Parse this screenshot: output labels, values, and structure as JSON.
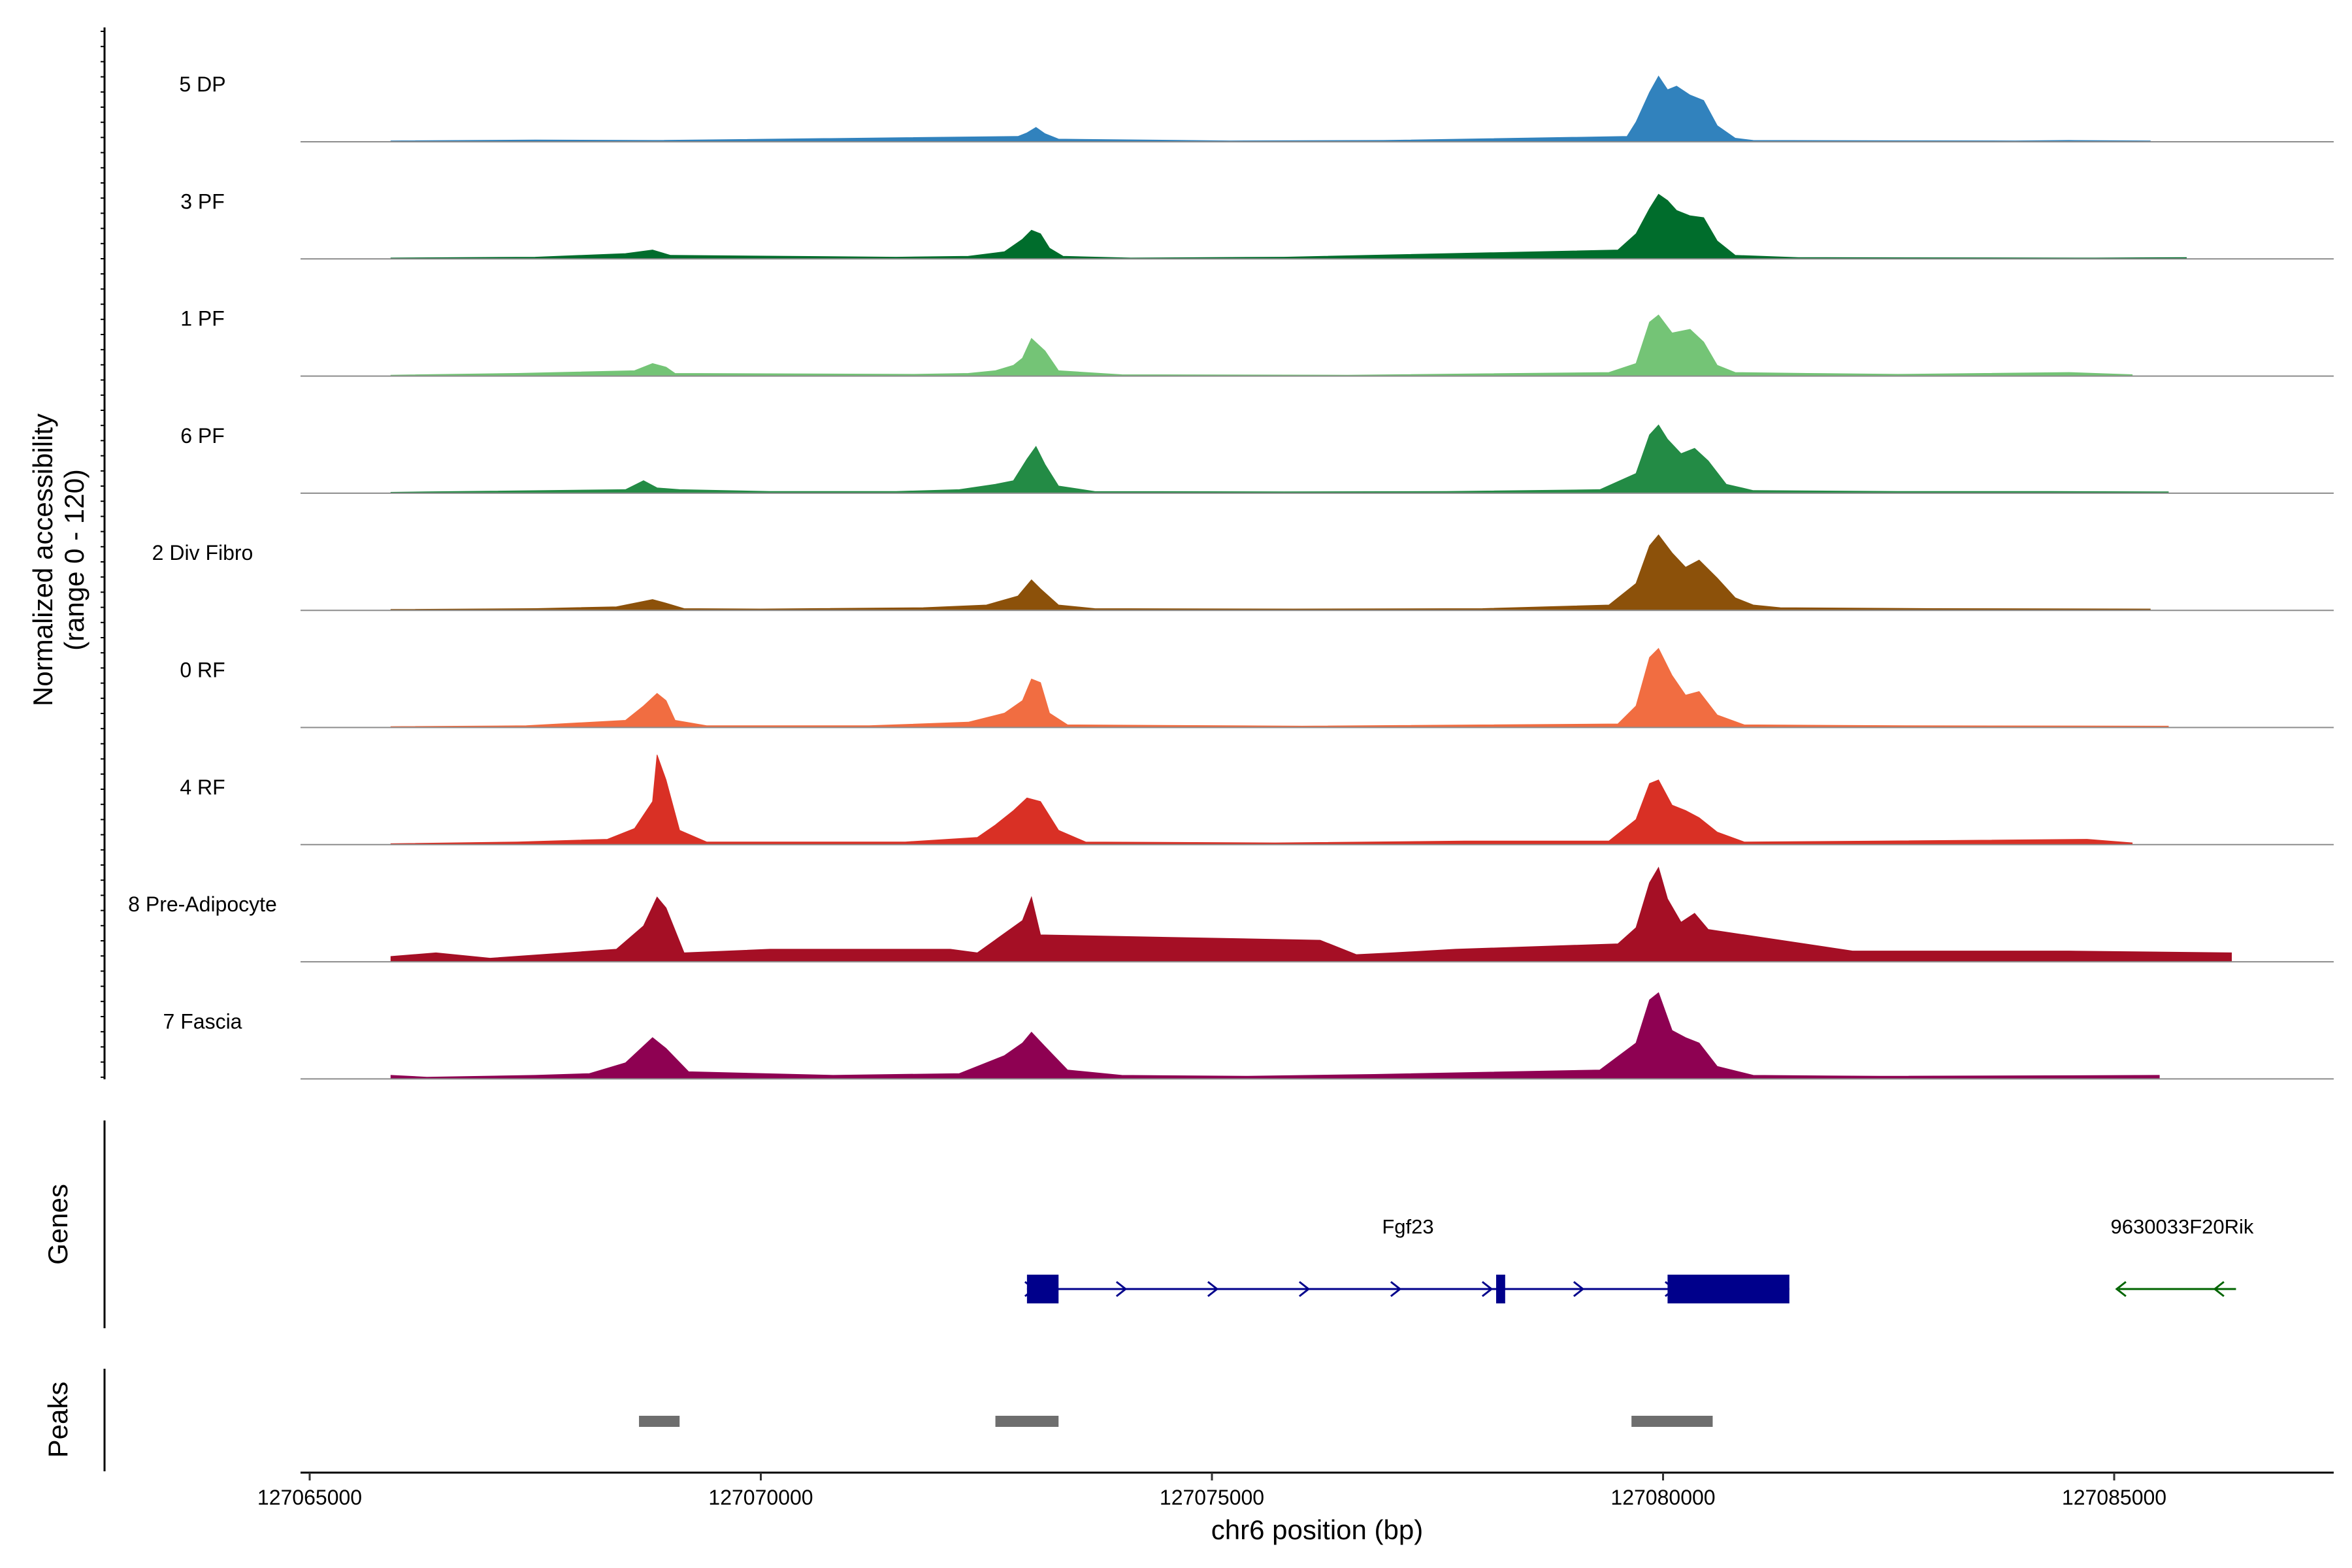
{
  "chart_data": {
    "type": "area",
    "title": "",
    "ylabel_line1": "Normalized accessibility",
    "ylabel_line2": "(range 0 - 120)",
    "xlabel": "chr6 position (bp)",
    "xlim": [
      127064900,
      127087550
    ],
    "ylim": [
      0,
      120
    ],
    "x_ticks": [
      127065000,
      127070000,
      127075000,
      127080000,
      127085000
    ],
    "x_tick_labels": [
      "127065000",
      "127070000",
      "127075000",
      "127080000",
      "127085000"
    ],
    "series": [
      {
        "name": "5 DP",
        "color": "#3182BD",
        "coverage": [
          [
            127065900,
            1
          ],
          [
            127067500,
            2
          ],
          [
            127068800,
            1.5
          ],
          [
            127072850,
            6
          ],
          [
            127072950,
            10
          ],
          [
            127073050,
            16
          ],
          [
            127073150,
            9
          ],
          [
            127073300,
            3
          ],
          [
            127075200,
            1
          ],
          [
            127076900,
            1.5
          ],
          [
            127079600,
            6
          ],
          [
            127079700,
            22
          ],
          [
            127079850,
            55
          ],
          [
            127079950,
            73
          ],
          [
            127080050,
            58
          ],
          [
            127080150,
            62
          ],
          [
            127080300,
            52
          ],
          [
            127080450,
            46
          ],
          [
            127080600,
            18
          ],
          [
            127080800,
            4
          ],
          [
            127081000,
            1.5
          ],
          [
            127083900,
            1
          ],
          [
            127084500,
            1.5
          ],
          [
            127085400,
            1
          ]
        ]
      },
      {
        "name": "3 PF",
        "color": "#006D2C",
        "coverage": [
          [
            127065900,
            1
          ],
          [
            127067500,
            2
          ],
          [
            127068500,
            6
          ],
          [
            127068800,
            10
          ],
          [
            127069000,
            4
          ],
          [
            127071500,
            2
          ],
          [
            127072300,
            3
          ],
          [
            127072700,
            8
          ],
          [
            127072900,
            22
          ],
          [
            127073000,
            32
          ],
          [
            127073100,
            28
          ],
          [
            127073200,
            12
          ],
          [
            127073350,
            3
          ],
          [
            127074100,
            1
          ],
          [
            127075800,
            2
          ],
          [
            127079500,
            10
          ],
          [
            127079700,
            28
          ],
          [
            127079850,
            56
          ],
          [
            127079950,
            72
          ],
          [
            127080050,
            65
          ],
          [
            127080150,
            54
          ],
          [
            127080300,
            48
          ],
          [
            127080450,
            46
          ],
          [
            127080600,
            20
          ],
          [
            127080800,
            4
          ],
          [
            127081500,
            1.5
          ],
          [
            127084800,
            1
          ],
          [
            127085800,
            1.5
          ]
        ]
      },
      {
        "name": "1 PF",
        "color": "#74C476",
        "coverage": [
          [
            127065900,
            1
          ],
          [
            127067300,
            3
          ],
          [
            127068600,
            6
          ],
          [
            127068800,
            14
          ],
          [
            127068950,
            10
          ],
          [
            127069050,
            3
          ],
          [
            127071700,
            2
          ],
          [
            127072300,
            3
          ],
          [
            127072600,
            6
          ],
          [
            127072800,
            12
          ],
          [
            127072900,
            20
          ],
          [
            127073000,
            42
          ],
          [
            127073150,
            28
          ],
          [
            127073300,
            6
          ],
          [
            127074000,
            1.5
          ],
          [
            127076500,
            1
          ],
          [
            127079400,
            4
          ],
          [
            127079700,
            14
          ],
          [
            127079850,
            60
          ],
          [
            127079950,
            68
          ],
          [
            127080100,
            48
          ],
          [
            127080300,
            52
          ],
          [
            127080450,
            38
          ],
          [
            127080600,
            12
          ],
          [
            127080800,
            4
          ],
          [
            127081600,
            3
          ],
          [
            127082600,
            2
          ],
          [
            127084500,
            4
          ],
          [
            127085200,
            1.5
          ]
        ]
      },
      {
        "name": "6 PF",
        "color": "#238B45",
        "coverage": [
          [
            127065900,
            1
          ],
          [
            127066300,
            1.5
          ],
          [
            127068500,
            4
          ],
          [
            127068700,
            14
          ],
          [
            127068850,
            6
          ],
          [
            127069100,
            4
          ],
          [
            127070100,
            2
          ],
          [
            127071500,
            2
          ],
          [
            127072200,
            4
          ],
          [
            127072600,
            10
          ],
          [
            127072800,
            14
          ],
          [
            127072950,
            38
          ],
          [
            127073050,
            52
          ],
          [
            127073150,
            32
          ],
          [
            127073300,
            8
          ],
          [
            127073700,
            2
          ],
          [
            127075800,
            1.5
          ],
          [
            127077600,
            2
          ],
          [
            127079300,
            4
          ],
          [
            127079700,
            22
          ],
          [
            127079850,
            65
          ],
          [
            127079950,
            76
          ],
          [
            127080050,
            60
          ],
          [
            127080200,
            44
          ],
          [
            127080350,
            50
          ],
          [
            127080500,
            36
          ],
          [
            127080700,
            10
          ],
          [
            127081000,
            3
          ],
          [
            127082600,
            2
          ],
          [
            127084300,
            2
          ],
          [
            127085600,
            1.5
          ]
        ]
      },
      {
        "name": "2 Div Fibro",
        "color": "#8C510A",
        "coverage": [
          [
            127065900,
            1
          ],
          [
            127067500,
            2
          ],
          [
            127068400,
            4
          ],
          [
            127068800,
            12
          ],
          [
            127068950,
            8
          ],
          [
            127069150,
            2
          ],
          [
            127070000,
            1.5
          ],
          [
            127071800,
            3
          ],
          [
            127072500,
            6
          ],
          [
            127072850,
            16
          ],
          [
            127073000,
            34
          ],
          [
            127073100,
            24
          ],
          [
            127073300,
            6
          ],
          [
            127073700,
            2
          ],
          [
            127075900,
            1.5
          ],
          [
            127078000,
            2
          ],
          [
            127079400,
            6
          ],
          [
            127079700,
            30
          ],
          [
            127079850,
            72
          ],
          [
            127079950,
            84
          ],
          [
            127080100,
            64
          ],
          [
            127080250,
            48
          ],
          [
            127080400,
            56
          ],
          [
            127080600,
            36
          ],
          [
            127080800,
            14
          ],
          [
            127081000,
            6
          ],
          [
            127081300,
            3
          ],
          [
            127083000,
            2
          ],
          [
            127085400,
            1.5
          ]
        ]
      },
      {
        "name": "0 RF",
        "color": "#F16D41",
        "coverage": [
          [
            127065900,
            1
          ],
          [
            127067400,
            2
          ],
          [
            127068500,
            8
          ],
          [
            127068700,
            24
          ],
          [
            127068850,
            38
          ],
          [
            127068950,
            30
          ],
          [
            127069050,
            8
          ],
          [
            127069400,
            2
          ],
          [
            127071200,
            2
          ],
          [
            127072300,
            6
          ],
          [
            127072700,
            16
          ],
          [
            127072900,
            30
          ],
          [
            127073000,
            54
          ],
          [
            127073100,
            50
          ],
          [
            127073200,
            16
          ],
          [
            127073400,
            3
          ],
          [
            127076000,
            1.5
          ],
          [
            127079500,
            4
          ],
          [
            127079700,
            24
          ],
          [
            127079850,
            78
          ],
          [
            127079950,
            88
          ],
          [
            127080100,
            58
          ],
          [
            127080250,
            36
          ],
          [
            127080400,
            40
          ],
          [
            127080600,
            14
          ],
          [
            127080900,
            3
          ],
          [
            127082700,
            2
          ],
          [
            127085600,
            1.5
          ]
        ]
      },
      {
        "name": "4 RF",
        "color": "#D93025",
        "coverage": [
          [
            127065900,
            1
          ],
          [
            127067300,
            3
          ],
          [
            127068300,
            6
          ],
          [
            127068600,
            18
          ],
          [
            127068800,
            48
          ],
          [
            127068850,
            100
          ],
          [
            127068950,
            72
          ],
          [
            127069100,
            16
          ],
          [
            127069400,
            3
          ],
          [
            127071600,
            3
          ],
          [
            127072400,
            8
          ],
          [
            127072600,
            22
          ],
          [
            127072800,
            38
          ],
          [
            127072950,
            52
          ],
          [
            127073100,
            48
          ],
          [
            127073300,
            16
          ],
          [
            127073600,
            3
          ],
          [
            127075700,
            2
          ],
          [
            127077800,
            4
          ],
          [
            127079400,
            4
          ],
          [
            127079700,
            28
          ],
          [
            127079850,
            68
          ],
          [
            127079950,
            72
          ],
          [
            127080100,
            44
          ],
          [
            127080250,
            38
          ],
          [
            127080400,
            30
          ],
          [
            127080600,
            14
          ],
          [
            127080900,
            3
          ],
          [
            127082400,
            4
          ],
          [
            127084700,
            6
          ],
          [
            127085200,
            2
          ]
        ]
      },
      {
        "name": "8 Pre-Adipocyte",
        "color": "#A50F25",
        "coverage": [
          [
            127065900,
            6
          ],
          [
            127066400,
            10
          ],
          [
            127067000,
            4
          ],
          [
            127068400,
            14
          ],
          [
            127068700,
            40
          ],
          [
            127068850,
            72
          ],
          [
            127068950,
            60
          ],
          [
            127069150,
            10
          ],
          [
            127070100,
            14
          ],
          [
            127072100,
            14
          ],
          [
            127072400,
            10
          ],
          [
            127072900,
            46
          ],
          [
            127073000,
            72
          ],
          [
            127073100,
            30
          ],
          [
            127076200,
            24
          ],
          [
            127076600,
            8
          ],
          [
            127077000,
            10
          ],
          [
            127077700,
            14
          ],
          [
            127079500,
            20
          ],
          [
            127079700,
            38
          ],
          [
            127079850,
            88
          ],
          [
            127079950,
            105
          ],
          [
            127080050,
            70
          ],
          [
            127080200,
            44
          ],
          [
            127080350,
            54
          ],
          [
            127080500,
            36
          ],
          [
            127082100,
            12
          ],
          [
            127084500,
            12
          ],
          [
            127086300,
            10
          ]
        ]
      },
      {
        "name": "7 Fascia",
        "color": "#8E0152",
        "coverage": [
          [
            127065900,
            4
          ],
          [
            127066300,
            2
          ],
          [
            127067500,
            4
          ],
          [
            127068100,
            6
          ],
          [
            127068500,
            18
          ],
          [
            127068800,
            46
          ],
          [
            127068950,
            34
          ],
          [
            127069200,
            8
          ],
          [
            127070800,
            4
          ],
          [
            127072200,
            6
          ],
          [
            127072700,
            26
          ],
          [
            127072900,
            40
          ],
          [
            127073000,
            52
          ],
          [
            127073150,
            36
          ],
          [
            127073400,
            10
          ],
          [
            127074000,
            4
          ],
          [
            127075400,
            3
          ],
          [
            127076800,
            5
          ],
          [
            127079300,
            10
          ],
          [
            127079700,
            40
          ],
          [
            127079850,
            88
          ],
          [
            127079950,
            96
          ],
          [
            127080100,
            54
          ],
          [
            127080250,
            46
          ],
          [
            127080400,
            40
          ],
          [
            127080600,
            14
          ],
          [
            127081000,
            4
          ],
          [
            127082400,
            3
          ],
          [
            127085500,
            4
          ]
        ]
      }
    ],
    "genes": [
      {
        "name": "Fgf23",
        "strand": "+",
        "color": "#00008B",
        "start": 127072950,
        "end": 127081400,
        "exons": [
          [
            127072950,
            127073300
          ],
          [
            127078150,
            127078250
          ],
          [
            127080050,
            127081400
          ]
        ]
      },
      {
        "name": "9630033F20Rik",
        "strand": "-",
        "color": "#006400",
        "start": 127085050,
        "end": 127086350,
        "exons": []
      }
    ],
    "peaks": [
      [
        127068650,
        127069100
      ],
      [
        127072600,
        127073300
      ],
      [
        127079650,
        127080550
      ]
    ],
    "panel_labels": {
      "genes": "Genes",
      "peaks": "Peaks"
    }
  }
}
